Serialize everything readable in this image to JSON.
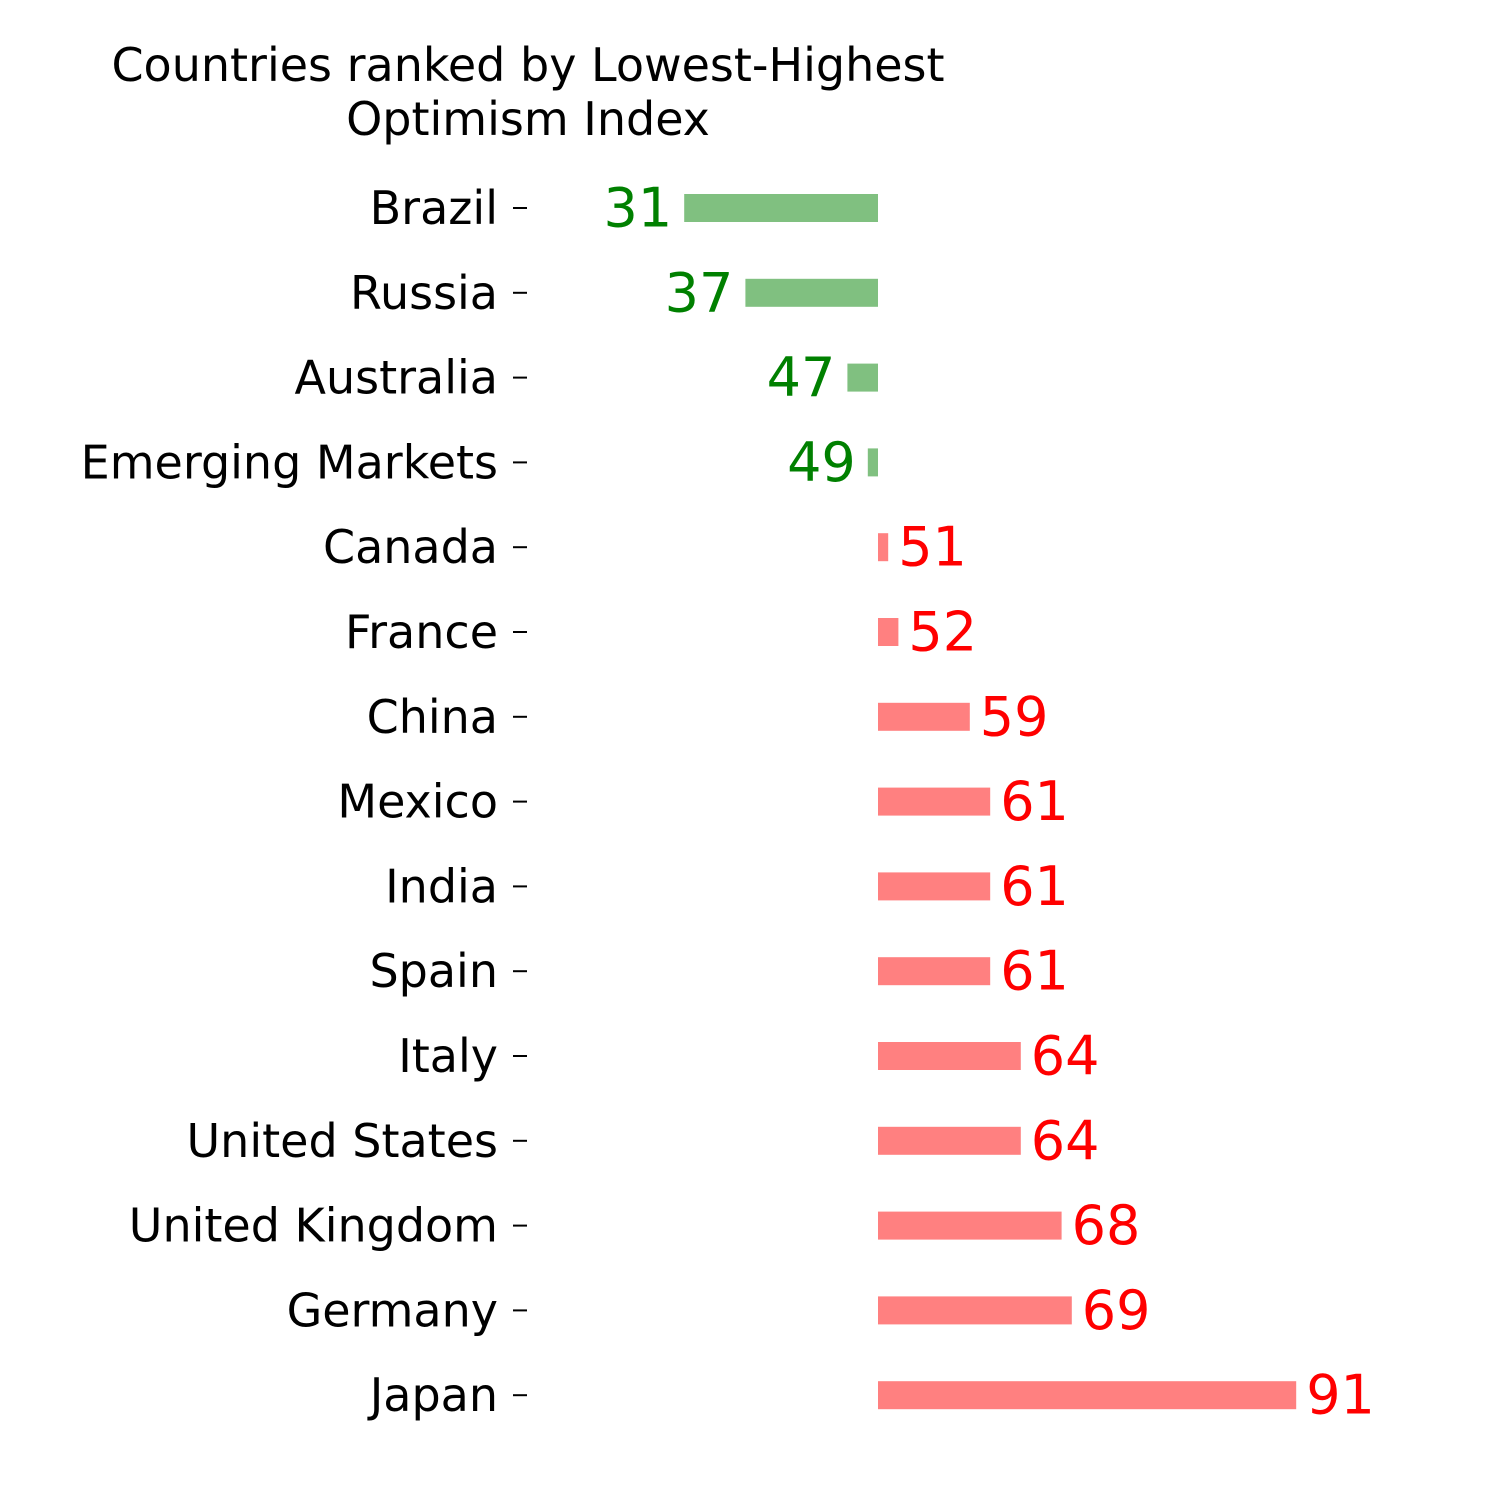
{
  "chart_data": {
    "type": "bar",
    "orientation": "horizontal",
    "title": "Countries ranked by Lowest-Highest\nOptimism Index",
    "xlabel": "",
    "ylabel": "",
    "baseline": 50,
    "grid": false,
    "legend": "none",
    "categories": [
      "Brazil",
      "Russia",
      "Australia",
      "Emerging Markets",
      "Canada",
      "France",
      "China",
      "Mexico",
      "India",
      "Spain",
      "Italy",
      "United States",
      "United Kingdom",
      "Germany",
      "Japan"
    ],
    "values": [
      31,
      37,
      47,
      49,
      51,
      52,
      59,
      61,
      61,
      61,
      64,
      64,
      68,
      69,
      91
    ],
    "value_labels": [
      "31",
      "37",
      "47",
      "49",
      "51",
      "52",
      "59",
      "61",
      "61",
      "61",
      "64",
      "64",
      "68",
      "69",
      "91"
    ],
    "colors": {
      "below_bar": "#80c080",
      "below_text": "#008000",
      "above_bar": "#ff8080",
      "above_text": "#ff0000",
      "category_text": "#000000"
    }
  }
}
